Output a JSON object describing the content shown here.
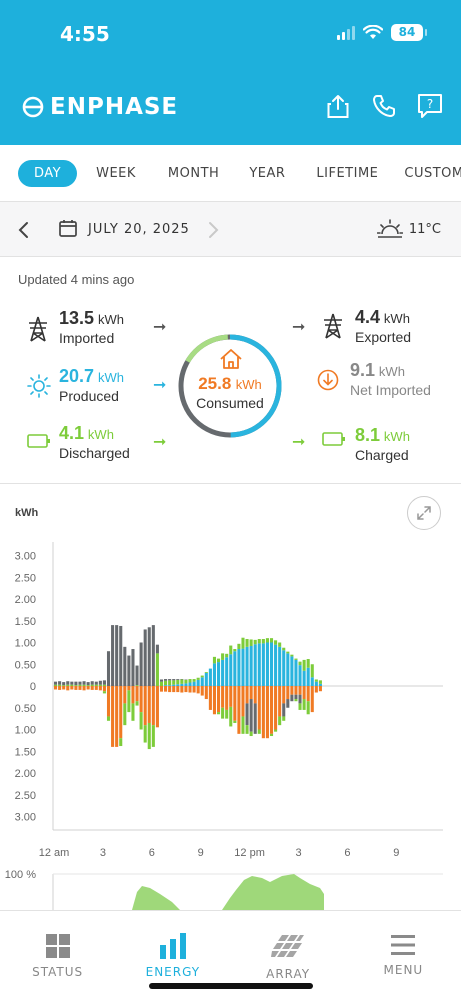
{
  "status_bar": {
    "time": "4:55",
    "battery": "84"
  },
  "header": {
    "logo_text": "ENPHASE",
    "actions": [
      "share-icon",
      "phone-icon",
      "help-icon"
    ]
  },
  "tabs": [
    {
      "label": "DAY",
      "active": true
    },
    {
      "label": "WEEK",
      "active": false
    },
    {
      "label": "MONTH",
      "active": false
    },
    {
      "label": "YEAR",
      "active": false
    },
    {
      "label": "LIFETIME",
      "active": false
    },
    {
      "label": "CUSTOM",
      "active": false
    }
  ],
  "date_bar": {
    "date": "JULY 20, 2025",
    "temperature": "11°C"
  },
  "summary": {
    "updated": "Updated 4 mins ago",
    "imported": {
      "value": "13.5",
      "unit": "kWh",
      "label": "Imported"
    },
    "produced": {
      "value": "20.7",
      "unit": "kWh",
      "label": "Produced"
    },
    "discharged": {
      "value": "4.1",
      "unit": "kWh",
      "label": "Discharged"
    },
    "consumed": {
      "value": "25.8",
      "unit": "kWh",
      "label": "Consumed"
    },
    "exported": {
      "value": "4.4",
      "unit": "kWh",
      "label": "Exported"
    },
    "net_imported": {
      "value": "9.1",
      "unit": "kWh",
      "label": "Net Imported"
    },
    "charged": {
      "value": "8.1",
      "unit": "kWh",
      "label": "Charged"
    }
  },
  "colors": {
    "accent": "#1eb0dc",
    "grid": "#666a6e",
    "solar": "#2ab4de",
    "battery": "#7dcc3a",
    "consumption": "#f07a24"
  },
  "chart_data": {
    "type": "bar",
    "ylabel": "kWh",
    "yticks_top": [
      "3.00",
      "2.50",
      "2.00",
      "1.50",
      "1.00",
      "0.50",
      "0"
    ],
    "yticks_bottom": [
      "0.50",
      "1.00",
      "1.50",
      "2.00",
      "2.50",
      "3.00"
    ],
    "ylim": [
      -3,
      3
    ],
    "xticks": [
      "12 am",
      "3",
      "6",
      "9",
      "12 pm",
      "3",
      "6",
      "9"
    ],
    "series": [
      {
        "name": "Grid",
        "color": "#666a6e"
      },
      {
        "name": "Solar",
        "color": "#2ab4de"
      },
      {
        "name": "Battery",
        "color": "#7dcc3a"
      },
      {
        "name": "Consumption",
        "color": "#f07a24"
      }
    ],
    "interval_hours": 0.25,
    "bars": [
      {
        "grid": 0.07,
        "solar": 0,
        "battery": 0.03,
        "cons": 0.08,
        "export": 0,
        "charge": 0
      },
      {
        "grid": 0.08,
        "solar": 0,
        "battery": 0.03,
        "cons": 0.09,
        "export": 0,
        "charge": 0
      },
      {
        "grid": 0.07,
        "solar": 0,
        "battery": 0.02,
        "cons": 0.08,
        "export": 0,
        "charge": 0
      },
      {
        "grid": 0.08,
        "solar": 0,
        "battery": 0.03,
        "cons": 0.1,
        "export": 0,
        "charge": 0
      },
      {
        "grid": 0.07,
        "solar": 0,
        "battery": 0.03,
        "cons": 0.08,
        "export": 0,
        "charge": 0
      },
      {
        "grid": 0.08,
        "solar": 0,
        "battery": 0.02,
        "cons": 0.09,
        "export": 0,
        "charge": 0
      },
      {
        "grid": 0.07,
        "solar": 0,
        "battery": 0.03,
        "cons": 0.09,
        "export": 0,
        "charge": 0
      },
      {
        "grid": 0.08,
        "solar": 0,
        "battery": 0.03,
        "cons": 0.1,
        "export": 0,
        "charge": 0
      },
      {
        "grid": 0.07,
        "solar": 0,
        "battery": 0.02,
        "cons": 0.08,
        "export": 0,
        "charge": 0
      },
      {
        "grid": 0.08,
        "solar": 0,
        "battery": 0.03,
        "cons": 0.09,
        "export": 0,
        "charge": 0
      },
      {
        "grid": 0.07,
        "solar": 0,
        "battery": 0.03,
        "cons": 0.09,
        "export": 0,
        "charge": 0
      },
      {
        "grid": 0.09,
        "solar": 0,
        "battery": 0.03,
        "cons": 0.1,
        "export": 0,
        "charge": 0
      },
      {
        "grid": 0.1,
        "solar": 0,
        "battery": 0.03,
        "cons": 0.12,
        "export": 0,
        "charge": 0.05
      },
      {
        "grid": 0.8,
        "solar": 0,
        "battery": 0,
        "cons": 0.7,
        "export": 0,
        "charge": 0.1
      },
      {
        "grid": 1.4,
        "solar": 0,
        "battery": 0,
        "cons": 1.4,
        "export": 0,
        "charge": 0
      },
      {
        "grid": 1.4,
        "solar": 0,
        "battery": 0,
        "cons": 1.4,
        "export": 0,
        "charge": 0
      },
      {
        "grid": 1.38,
        "solar": 0,
        "battery": 0,
        "cons": 1.2,
        "export": 0,
        "charge": 0.18
      },
      {
        "grid": 0.9,
        "solar": 0,
        "battery": 0,
        "cons": 0.4,
        "export": 0,
        "charge": 0.5
      },
      {
        "grid": 0.7,
        "solar": 0,
        "battery": 0,
        "cons": 0.1,
        "export": 0,
        "charge": 0.5
      },
      {
        "grid": 0.85,
        "solar": 0,
        "battery": 0,
        "cons": 0.4,
        "export": 0,
        "charge": 0.4
      },
      {
        "grid": 0.45,
        "solar": 0,
        "battery": 0.02,
        "cons": 0.35,
        "export": 0,
        "charge": 0.1
      },
      {
        "grid": 1.0,
        "solar": 0,
        "battery": 0,
        "cons": 0.6,
        "export": 0,
        "charge": 0.4
      },
      {
        "grid": 1.3,
        "solar": 0,
        "battery": 0,
        "cons": 0.9,
        "export": 0,
        "charge": 0.4
      },
      {
        "grid": 1.35,
        "solar": 0,
        "battery": 0,
        "cons": 0.85,
        "export": 0,
        "charge": 0.6
      },
      {
        "grid": 1.4,
        "solar": 0,
        "battery": 0,
        "cons": 0.9,
        "export": 0,
        "charge": 0.5
      },
      {
        "grid": 0.2,
        "solar": 0,
        "battery": 0.75,
        "cons": 0.95,
        "export": 0,
        "charge": 0
      },
      {
        "grid": 0.05,
        "solar": 0,
        "battery": 0.1,
        "cons": 0.13,
        "export": 0,
        "charge": 0
      },
      {
        "grid": 0.04,
        "solar": 0.02,
        "battery": 0.1,
        "cons": 0.13,
        "export": 0,
        "charge": 0
      },
      {
        "grid": 0.03,
        "solar": 0.02,
        "battery": 0.11,
        "cons": 0.14,
        "export": 0,
        "charge": 0
      },
      {
        "grid": 0.03,
        "solar": 0.03,
        "battery": 0.1,
        "cons": 0.14,
        "export": 0,
        "charge": 0
      },
      {
        "grid": 0.02,
        "solar": 0.04,
        "battery": 0.1,
        "cons": 0.14,
        "export": 0,
        "charge": 0
      },
      {
        "grid": 0.01,
        "solar": 0.05,
        "battery": 0.1,
        "cons": 0.15,
        "export": 0,
        "charge": 0
      },
      {
        "grid": 0.01,
        "solar": 0.06,
        "battery": 0.08,
        "cons": 0.14,
        "export": 0,
        "charge": 0
      },
      {
        "grid": 0,
        "solar": 0.08,
        "battery": 0.08,
        "cons": 0.15,
        "export": 0,
        "charge": 0
      },
      {
        "grid": 0,
        "solar": 0.1,
        "battery": 0.06,
        "cons": 0.15,
        "export": 0,
        "charge": 0
      },
      {
        "grid": 0,
        "solar": 0.14,
        "battery": 0.05,
        "cons": 0.17,
        "export": 0,
        "charge": 0
      },
      {
        "grid": 0,
        "solar": 0.2,
        "battery": 0.04,
        "cons": 0.22,
        "export": 0,
        "charge": 0
      },
      {
        "grid": 0,
        "solar": 0.3,
        "battery": 0.02,
        "cons": 0.3,
        "export": 0,
        "charge": 0
      },
      {
        "grid": 0,
        "solar": 0.4,
        "battery": 0,
        "cons": 0.55,
        "export": 0,
        "charge": 0
      },
      {
        "grid": 0,
        "solar": 0.52,
        "battery": 0.15,
        "cons": 0.65,
        "export": 0,
        "charge": 0
      },
      {
        "grid": 0,
        "solar": 0.55,
        "battery": 0.08,
        "cons": 0.6,
        "export": 0,
        "charge": 0.05
      },
      {
        "grid": 0,
        "solar": 0.6,
        "battery": 0.15,
        "cons": 0.5,
        "export": 0,
        "charge": 0.25
      },
      {
        "grid": 0,
        "solar": 0.66,
        "battery": 0.08,
        "cons": 0.55,
        "export": 0,
        "charge": 0.2
      },
      {
        "grid": 0,
        "solar": 0.73,
        "battery": 0.2,
        "cons": 0.48,
        "export": 0,
        "charge": 0.45
      },
      {
        "grid": 0,
        "solar": 0.8,
        "battery": 0.05,
        "cons": 0.8,
        "export": 0,
        "charge": 0.05
      },
      {
        "grid": 0,
        "solar": 0.85,
        "battery": 0.12,
        "cons": 1.1,
        "export": 0,
        "charge": 0
      },
      {
        "grid": 0,
        "solar": 0.86,
        "battery": 0.25,
        "cons": 0.7,
        "export": 0,
        "charge": 0.4
      },
      {
        "grid": 0,
        "solar": 0.9,
        "battery": 0.18,
        "cons": 0.4,
        "export": 0.5,
        "charge": 0.2
      },
      {
        "grid": 0,
        "solar": 0.92,
        "battery": 0.15,
        "cons": 0.3,
        "export": 0.75,
        "charge": 0.1
      },
      {
        "grid": 0,
        "solar": 0.96,
        "battery": 0.1,
        "cons": 0.4,
        "export": 0.7,
        "charge": 0
      },
      {
        "grid": 0,
        "solar": 0.98,
        "battery": 0.1,
        "cons": 1.0,
        "export": 0,
        "charge": 0.1
      },
      {
        "grid": 0,
        "solar": 0.98,
        "battery": 0.1,
        "cons": 1.2,
        "export": 0,
        "charge": 0
      },
      {
        "grid": 0,
        "solar": 1.0,
        "battery": 0.1,
        "cons": 1.2,
        "export": 0,
        "charge": 0
      },
      {
        "grid": 0,
        "solar": 1.0,
        "battery": 0.1,
        "cons": 1.1,
        "export": 0,
        "charge": 0.05
      },
      {
        "grid": 0,
        "solar": 0.95,
        "battery": 0.1,
        "cons": 1.0,
        "export": 0,
        "charge": 0.05
      },
      {
        "grid": 0,
        "solar": 0.9,
        "battery": 0.1,
        "cons": 0.7,
        "export": 0,
        "charge": 0.2
      },
      {
        "grid": 0,
        "solar": 0.82,
        "battery": 0.06,
        "cons": 0.4,
        "export": 0.3,
        "charge": 0.1
      },
      {
        "grid": 0,
        "solar": 0.75,
        "battery": 0.04,
        "cons": 0.3,
        "export": 0.2,
        "charge": 0
      },
      {
        "grid": 0,
        "solar": 0.68,
        "battery": 0.04,
        "cons": 0.2,
        "export": 0.15,
        "charge": 0
      },
      {
        "grid": 0,
        "solar": 0.6,
        "battery": 0.03,
        "cons": 0.2,
        "export": 0.1,
        "charge": 0.05
      },
      {
        "grid": 0,
        "solar": 0.48,
        "battery": 0.08,
        "cons": 0.2,
        "export": 0.2,
        "charge": 0.15
      },
      {
        "grid": 0,
        "solar": 0.35,
        "battery": 0.25,
        "cons": 0.3,
        "export": 0,
        "charge": 0.25
      },
      {
        "grid": 0,
        "solar": 0.42,
        "battery": 0.2,
        "cons": 0.35,
        "export": 0,
        "charge": 0.3
      },
      {
        "grid": 0,
        "solar": 0.2,
        "battery": 0.3,
        "cons": 0.6,
        "export": 0,
        "charge": 0
      },
      {
        "grid": 0,
        "solar": 0.1,
        "battery": 0.05,
        "cons": 0.15,
        "export": 0,
        "charge": 0
      },
      {
        "grid": 0,
        "solar": 0.05,
        "battery": 0.08,
        "cons": 0.12,
        "export": 0,
        "charge": 0
      }
    ]
  },
  "secondary_chart": {
    "ytick": "100 %",
    "type": "area"
  },
  "bottom_nav": [
    {
      "label": "STATUS",
      "active": false
    },
    {
      "label": "ENERGY",
      "active": true
    },
    {
      "label": "ARRAY",
      "active": false
    },
    {
      "label": "MENU",
      "active": false
    }
  ]
}
